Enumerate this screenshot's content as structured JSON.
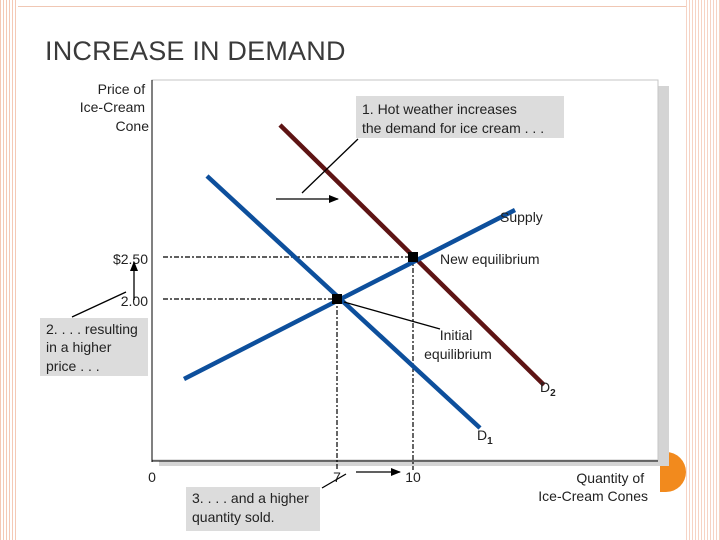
{
  "page": {
    "title": "INCREASE IN DEMAND"
  },
  "chart_data": {
    "type": "line",
    "title": "",
    "ylabel_lines": [
      "Price of",
      "Ice-Cream",
      "Cone"
    ],
    "xlabel_lines": [
      "Quantity of",
      "Ice-Cream Cones"
    ],
    "x_origin_label": "0",
    "x_ticks": [
      {
        "value": 7,
        "label": "7"
      },
      {
        "value": 10,
        "label": "10"
      }
    ],
    "y_ticks": [
      {
        "value": 2.5,
        "label": "$2.50"
      },
      {
        "value": 2.0,
        "label": "2.00"
      }
    ],
    "series": [
      {
        "name": "Supply",
        "color": "#5e1414",
        "points": [
          [
            7,
            2.0
          ],
          [
            10,
            2.5
          ]
        ]
      },
      {
        "name": "D1",
        "label_main": "D",
        "label_sub": "1",
        "color": "#0d4f9c",
        "points": [
          [
            7,
            2.0
          ]
        ]
      },
      {
        "name": "D2",
        "label_main": "D",
        "label_sub": "2",
        "color": "#5e1414",
        "points": [
          [
            10,
            2.5
          ]
        ]
      }
    ],
    "equilibria": [
      {
        "label": "New equilibrium",
        "x": 10,
        "y": 2.5
      },
      {
        "label_lines": [
          "Initial",
          "equilibrium"
        ],
        "x": 7,
        "y": 2.0
      }
    ],
    "annotations": [
      {
        "id": "note1",
        "lines": [
          "1. Hot weather increases",
          "the demand for ice cream . . ."
        ]
      },
      {
        "id": "note2",
        "lines": [
          "2. . . . resulting",
          "in a higher",
          "price . . ."
        ]
      },
      {
        "id": "note3",
        "lines": [
          "3. . . . and a higher",
          "quantity sold."
        ]
      }
    ]
  }
}
